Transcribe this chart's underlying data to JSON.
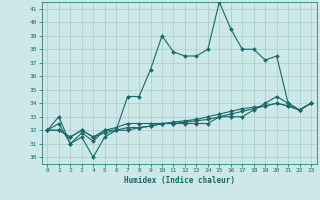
{
  "xlabel": "Humidex (Indice chaleur)",
  "ylabel": "",
  "bg_color": "#cce8e8",
  "grid_color": "#aacccc",
  "line_color": "#1a6868",
  "xlim": [
    -0.5,
    23.5
  ],
  "ylim": [
    29.5,
    41.5
  ],
  "yticks": [
    30,
    31,
    32,
    33,
    34,
    35,
    36,
    37,
    38,
    39,
    40,
    41
  ],
  "xticks": [
    0,
    1,
    2,
    3,
    4,
    5,
    6,
    7,
    8,
    9,
    10,
    11,
    12,
    13,
    14,
    15,
    16,
    17,
    18,
    19,
    20,
    21,
    22,
    23
  ],
  "series": [
    [
      32.0,
      33.0,
      31.0,
      31.5,
      30.0,
      31.5,
      32.0,
      34.5,
      34.5,
      36.5,
      39.0,
      37.8,
      37.5,
      37.5,
      38.0,
      41.5,
      39.5,
      38.0,
      38.0,
      37.2,
      37.5,
      34.0,
      33.5,
      34.0
    ],
    [
      32.0,
      32.5,
      31.0,
      31.8,
      31.2,
      32.0,
      32.2,
      32.5,
      32.5,
      32.5,
      32.5,
      32.5,
      32.5,
      32.5,
      32.5,
      33.0,
      33.0,
      33.0,
      33.5,
      34.0,
      34.5,
      34.0,
      33.5,
      34.0
    ],
    [
      32.0,
      32.0,
      31.5,
      32.0,
      31.5,
      32.0,
      32.0,
      32.2,
      32.2,
      32.3,
      32.5,
      32.6,
      32.7,
      32.8,
      33.0,
      33.2,
      33.4,
      33.6,
      33.7,
      33.8,
      34.0,
      33.8,
      33.5,
      34.0
    ],
    [
      32.0,
      32.0,
      31.5,
      32.0,
      31.5,
      31.8,
      32.0,
      32.0,
      32.2,
      32.3,
      32.5,
      32.5,
      32.6,
      32.7,
      32.8,
      33.0,
      33.2,
      33.4,
      33.6,
      33.8,
      34.0,
      33.8,
      33.5,
      34.0
    ]
  ]
}
